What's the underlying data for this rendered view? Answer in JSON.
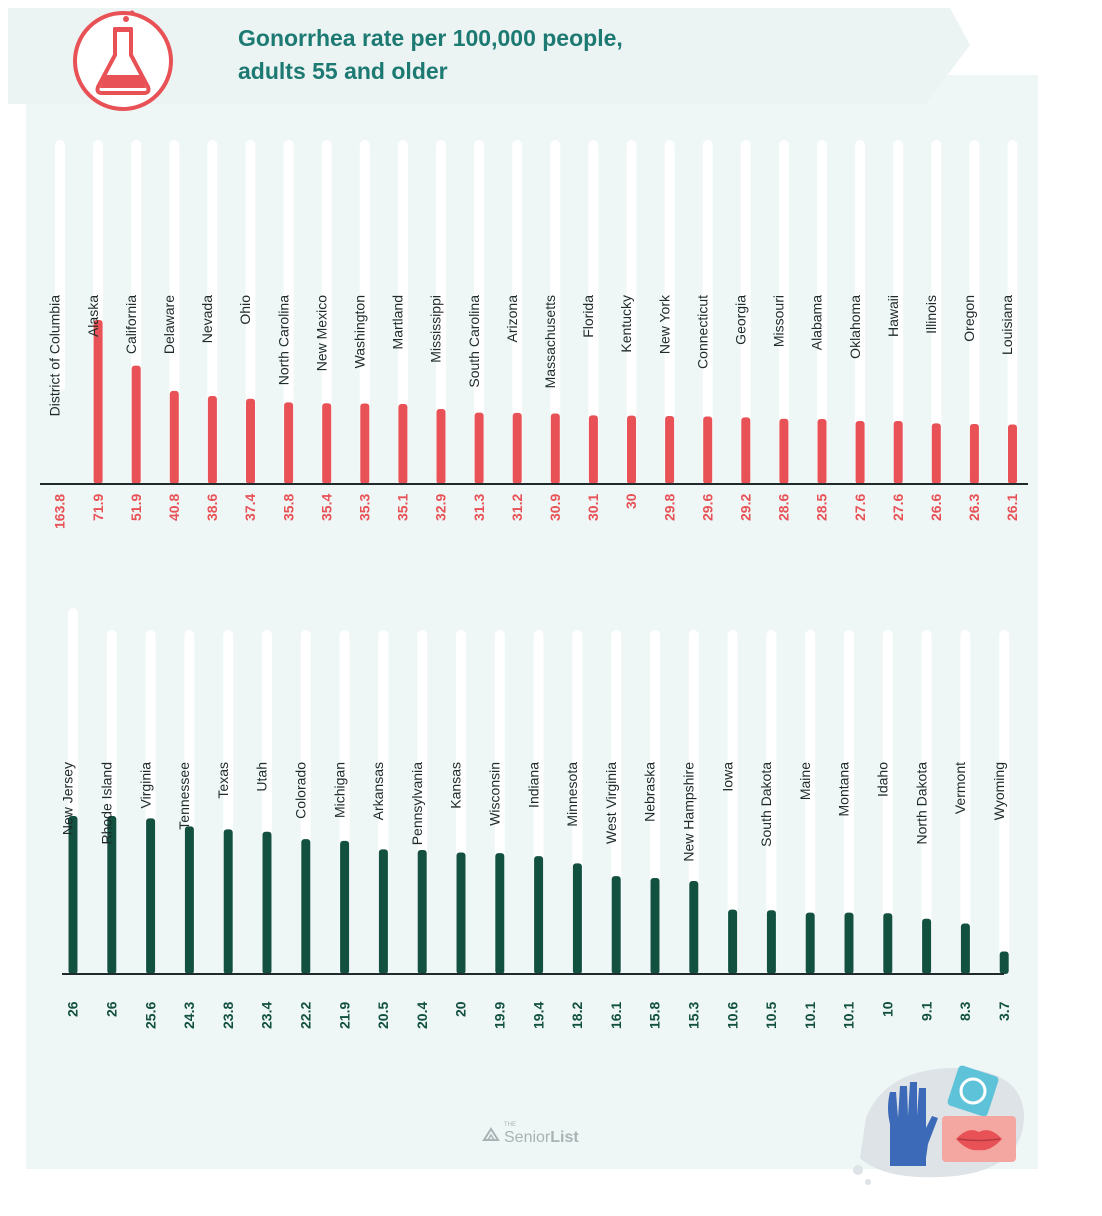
{
  "header": {
    "title_line1": "Gonorrhea rate per 100,000 people,",
    "title_line2": "adults 55 and older",
    "flask_icon": "flask-icon",
    "accent_color": "#e85155",
    "title_color": "#1d7a72"
  },
  "chart_data": [
    {
      "type": "bar",
      "title": "Gonorrhea rate per 100,000 people, adults 55 and older",
      "color": "#e85155",
      "categories": [
        "District of Columbia",
        "Alaska",
        "California",
        "Delaware",
        "Nevada",
        "Ohio",
        "North Carolina",
        "New Mexico",
        "Washington",
        "Martland",
        "Mississippi",
        "South Carolina",
        "Arizona",
        "Massachusetts",
        "Florida",
        "Kentucky",
        "New York",
        "Connecticut",
        "Georgia",
        "Missouri",
        "Alabama",
        "Oklahoma",
        "Hawaii",
        "Illinois",
        "Oregon",
        "Louisiana"
      ],
      "values": [
        163.8,
        71.9,
        51.9,
        40.8,
        38.6,
        37.4,
        35.8,
        35.4,
        35.3,
        35.1,
        32.9,
        31.3,
        31.2,
        30.9,
        30.1,
        30,
        29.8,
        29.6,
        29.2,
        28.6,
        28.5,
        27.6,
        27.6,
        26.6,
        26.3,
        26.1
      ],
      "labels": [
        "163.8",
        "71.9",
        "51.9",
        "40.8",
        "38.6",
        "37.4",
        "35.8",
        "35.4",
        "35.3",
        "35.1",
        "32.9",
        "31.3",
        "31.2",
        "30.9",
        "30.1",
        "30",
        "29.8",
        "29.6",
        "29.2",
        "28.6",
        "28.5",
        "27.6",
        "27.6",
        "26.6",
        "26.3",
        "26.1"
      ]
    },
    {
      "type": "bar",
      "color": "#12503f",
      "categories": [
        "New Jersey",
        "Rhode Island",
        "Virginia",
        "Tennessee",
        "Texas",
        "Utah",
        "Colorado",
        "Michigan",
        "Arkansas",
        "Pennsylvania",
        "Kansas",
        "Wisconsin",
        "Indiana",
        "Minnesota",
        "West Virginia",
        "Nebraska",
        "New Hampshire",
        "Iowa",
        "South Dakota",
        "Maine",
        "Montana",
        "Idaho",
        "North Dakota",
        "Vermont",
        "Wyoming"
      ],
      "values": [
        26,
        26,
        25.6,
        24.3,
        23.8,
        23.4,
        22.2,
        21.9,
        20.5,
        20.4,
        20,
        19.9,
        19.4,
        18.2,
        16.1,
        15.8,
        15.3,
        10.6,
        10.5,
        10.1,
        10.1,
        10,
        9.1,
        8.3,
        3.7
      ],
      "labels": [
        "26",
        "26",
        "25.6",
        "24.3",
        "23.8",
        "23.4",
        "22.2",
        "21.9",
        "20.5",
        "20.4",
        "20",
        "19.9",
        "19.4",
        "18.2",
        "16.1",
        "15.8",
        "15.3",
        "10.6",
        "10.5",
        "10.1",
        "10.1",
        "10",
        "9.1",
        "8.3",
        "3.7"
      ]
    }
  ],
  "footer": {
    "logo_small": "THE",
    "logo_senior": "Senior",
    "logo_list": "List",
    "logo_icon": "senior-list-logo-icon",
    "decoration_icons": [
      "glove-icon",
      "condom-icon",
      "lips-icon"
    ]
  }
}
